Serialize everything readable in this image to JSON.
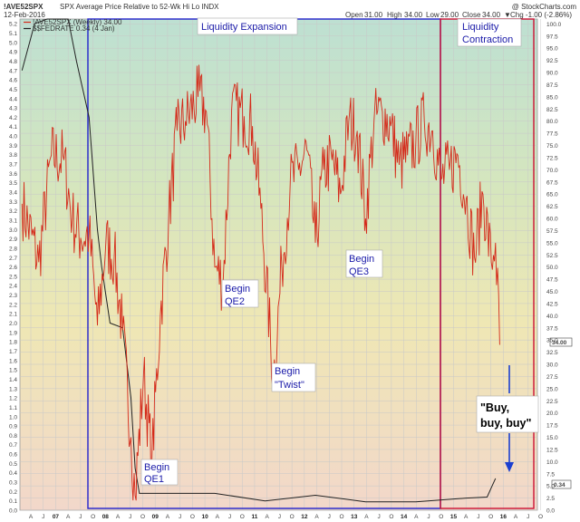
{
  "header": {
    "symbol": "!AVE52SPX",
    "description": "SPX Average Price Relative to 52-Wk Hi Lo INDX",
    "date": "12-Feb-2016",
    "watermark": "@ StockCharts.com",
    "ohlc": {
      "open_label": "Open",
      "open": "31.00",
      "high_label": "High",
      "high": "34.00",
      "low_label": "Low",
      "low": "29.00",
      "close_label": "Close",
      "close": "34.00",
      "change": "Chg -1.00 (-2.86%)",
      "change_marker": "▼"
    }
  },
  "legend": [
    {
      "text": "!AVE52SPX (Weekly) 34.00",
      "color": "#d42a1a"
    },
    {
      "text": "$$FEDRATE 0.34 (4 Jan)",
      "color": "#222222"
    }
  ],
  "price_badges": {
    "right_value": "34.00",
    "left_value": "0.34"
  },
  "annotations": {
    "expansion": "Liquidity Expansion",
    "contraction_line1": "Liquidity",
    "contraction_line2": "Contraction",
    "qe1_line1": "Begin",
    "qe1_line2": "QE1",
    "qe2_line1": "Begin",
    "qe2_line2": "QE2",
    "twist_line1": "Begin",
    "twist_line2": "\"Twist\"",
    "qe3_line1": "Begin",
    "qe3_line2": "QE3",
    "buy_line1": "\"Buy,",
    "buy_line2": "buy, buy\""
  },
  "colors": {
    "index_line": "#d42a1a",
    "fedrate_line": "#222222",
    "expansion_box": "#2222cc",
    "contraction_box": "#cc1133",
    "arrow": "#1a3fd0"
  },
  "chart_data": [
    {
      "type": "line",
      "name": "!AVE52SPX (Weekly)",
      "x_ticks": [
        "A",
        "J",
        "07",
        "A",
        "J",
        "O",
        "08",
        "A",
        "J",
        "O",
        "09",
        "A",
        "J",
        "O",
        "10",
        "A",
        "J",
        "O",
        "11",
        "A",
        "J",
        "O",
        "12",
        "A",
        "J",
        "O",
        "13",
        "A",
        "J",
        "O",
        "14",
        "A",
        "J",
        "O",
        "15",
        "A",
        "J",
        "O",
        "16",
        "A",
        "J",
        "O"
      ],
      "y_right_ticks": [
        0.0,
        2.5,
        5.0,
        7.5,
        10.0,
        12.5,
        15.0,
        17.5,
        20.0,
        22.5,
        25.0,
        27.5,
        30.0,
        32.5,
        35.0,
        37.5,
        40.0,
        42.5,
        45.0,
        47.5,
        50.0,
        52.5,
        55.0,
        57.5,
        60.0,
        62.5,
        65.0,
        67.5,
        70.0,
        72.5,
        75.0,
        77.5,
        80.0,
        82.5,
        85.0,
        87.5,
        90.0,
        92.5,
        95.0,
        97.5,
        100.0
      ],
      "ylim": [
        0,
        101
      ],
      "axis": "right",
      "x": [
        "2006-08",
        "2006-12",
        "2007-03",
        "2007-06",
        "2007-08",
        "2007-10",
        "2007-12",
        "2008-02",
        "2008-04",
        "2008-06",
        "2008-08",
        "2008-10",
        "2008-11",
        "2009-01",
        "2009-03",
        "2009-05",
        "2009-07",
        "2009-09",
        "2009-11",
        "2010-02",
        "2010-04",
        "2010-06",
        "2010-08",
        "2010-10",
        "2011-01",
        "2011-03",
        "2011-05",
        "2011-08",
        "2011-10",
        "2011-12",
        "2012-02",
        "2012-04",
        "2012-06",
        "2012-08",
        "2012-10",
        "2012-12",
        "2013-02",
        "2013-04",
        "2013-06",
        "2013-08",
        "2013-10",
        "2013-12",
        "2014-02",
        "2014-04",
        "2014-06",
        "2014-08",
        "2014-10",
        "2014-12",
        "2015-02",
        "2015-04",
        "2015-06",
        "2015-08",
        "2015-10",
        "2015-12",
        "2016-01",
        "2016-02"
      ],
      "values": [
        63,
        51,
        73,
        72,
        60,
        56,
        57,
        38,
        55,
        52,
        37,
        15,
        3,
        28,
        10,
        40,
        60,
        78,
        80,
        85,
        82,
        50,
        47,
        82,
        81,
        79,
        62,
        27,
        50,
        67,
        70,
        74,
        55,
        70,
        72,
        65,
        80,
        78,
        60,
        80,
        82,
        79,
        71,
        73,
        76,
        80,
        78,
        68,
        70,
        73,
        64,
        52,
        65,
        51,
        55,
        34
      ]
    },
    {
      "type": "line",
      "name": "$$FEDRATE",
      "axis": "left",
      "y_left_ticks": [
        0.0,
        0.1,
        0.2,
        0.3,
        0.4,
        0.5,
        0.6,
        0.7,
        0.8,
        0.9,
        1.0,
        1.1,
        1.2,
        1.3,
        1.4,
        1.5,
        1.6,
        1.7,
        1.8,
        1.9,
        2.0,
        2.1,
        2.2,
        2.3,
        2.4,
        2.5,
        2.6,
        2.7,
        2.8,
        2.9,
        3.0,
        3.1,
        3.2,
        3.3,
        3.4,
        3.5,
        3.6,
        3.7,
        3.8,
        3.9,
        4.0,
        4.1,
        4.2,
        4.3,
        4.4,
        4.5,
        4.6,
        4.7,
        4.8,
        4.9,
        5.0,
        5.1,
        5.2
      ],
      "ylim": [
        0,
        5.25
      ],
      "x": [
        "2006-08",
        "2006-11",
        "2007-02",
        "2007-05",
        "2007-07",
        "2007-09",
        "2007-10",
        "2007-12",
        "2008-01",
        "2008-02",
        "2008-03",
        "2008-05",
        "2008-08",
        "2008-10",
        "2008-11",
        "2008-12",
        "2009-06",
        "2010-06",
        "2011-06",
        "2012-06",
        "2013-06",
        "2014-06",
        "2015-06",
        "2015-11",
        "2015-12",
        "2016-01"
      ],
      "values": [
        4.7,
        5.2,
        5.25,
        5.25,
        5.25,
        4.8,
        4.6,
        4.2,
        3.6,
        3.0,
        2.6,
        2.0,
        1.95,
        1.2,
        0.45,
        0.18,
        0.18,
        0.18,
        0.1,
        0.16,
        0.09,
        0.09,
        0.13,
        0.14,
        0.24,
        0.34
      ]
    }
  ]
}
